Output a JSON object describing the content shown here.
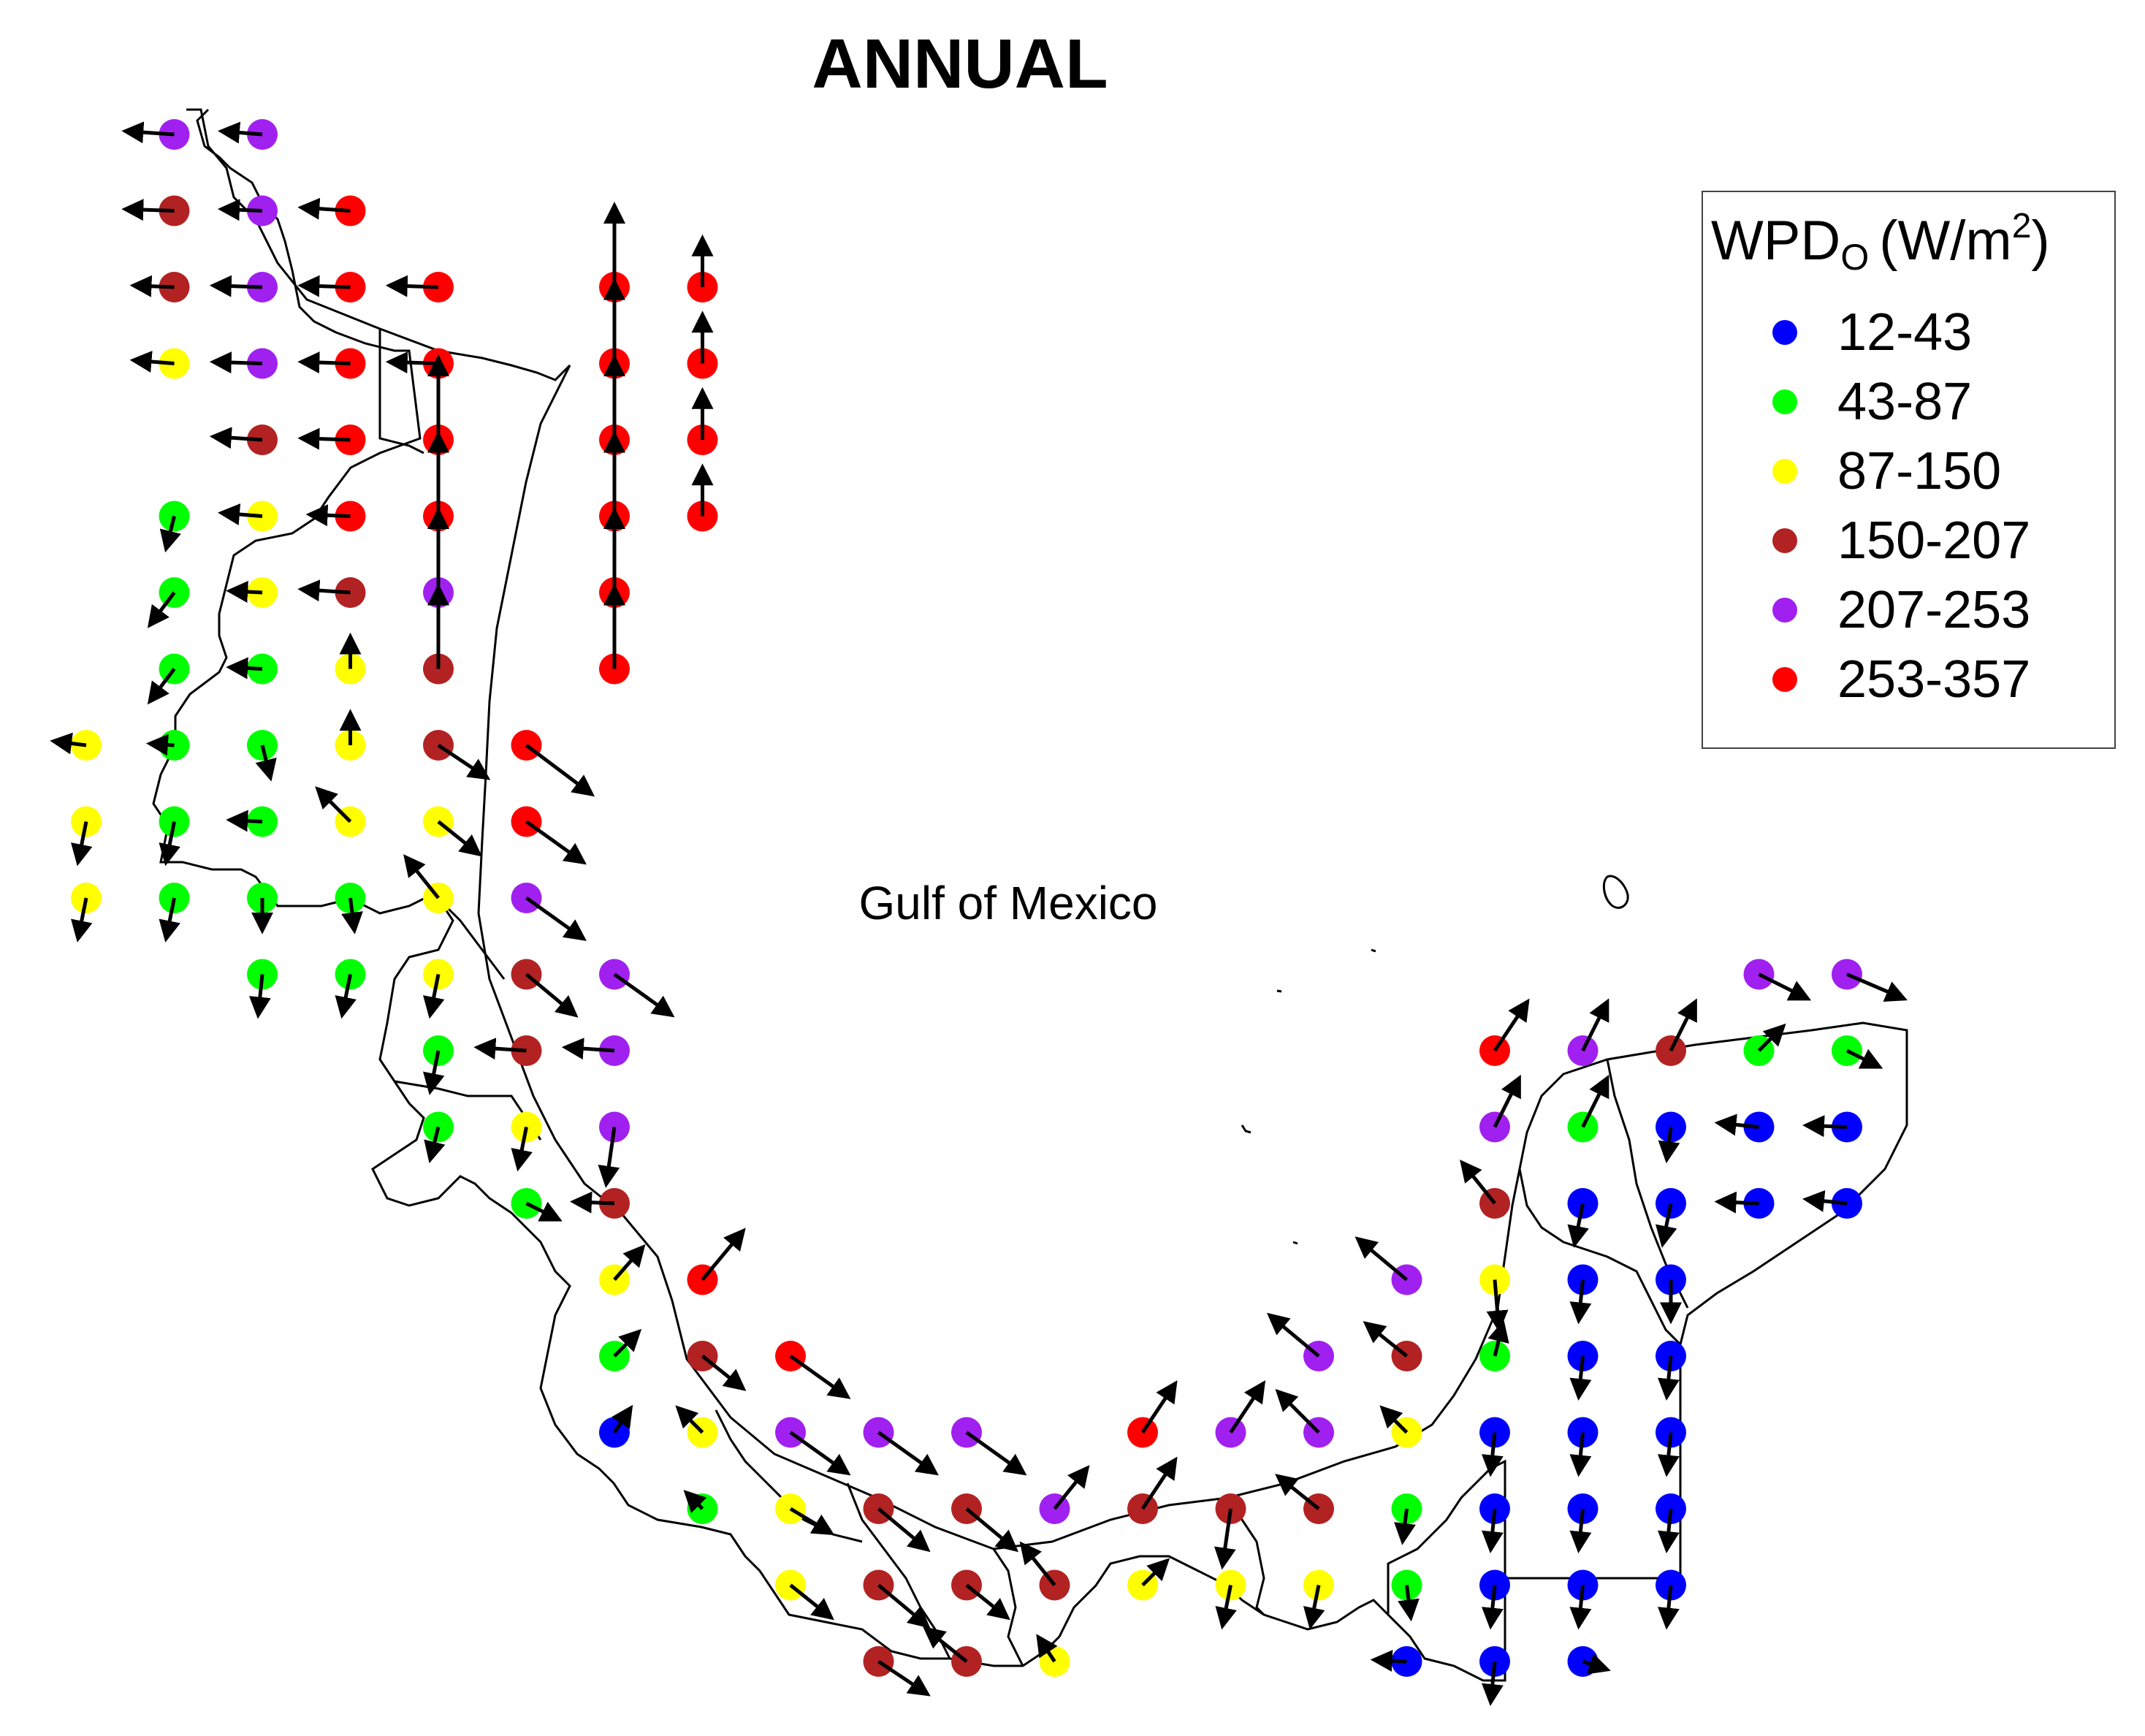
{
  "title": "ANNUAL",
  "sea_label": "Gulf of Mexico",
  "legend": {
    "variable": "WPD",
    "variable_subscript": "O",
    "unit_open": "(W/m",
    "unit_exponent": "2",
    "unit_close": ")",
    "classes": [
      {
        "label": "12-43",
        "color": "#0000ff"
      },
      {
        "label": "43-87",
        "color": "#00ff00"
      },
      {
        "label": "87-150",
        "color": "#ffff00"
      },
      {
        "label": "150-207",
        "color": "#b22222"
      },
      {
        "label": "207-253",
        "color": "#a020f0"
      },
      {
        "label": "253-357",
        "color": "#ff0000"
      }
    ]
  },
  "grid_lon": [
    -99.0,
    -98.5,
    -98.0,
    -97.5,
    -97.0,
    -96.5,
    -96.0,
    -95.5,
    -95.0,
    -94.5,
    -94.0,
    -93.5,
    -93.0,
    -92.5,
    -92.0,
    -91.5,
    -91.0,
    -90.5,
    -90.0,
    -89.5,
    -89.0,
    -88.5,
    -88.0,
    -87.5,
    -87.0
  ],
  "grid_lat": [
    27.0,
    26.5,
    26.0,
    25.5,
    25.0,
    24.5,
    24.0,
    23.5,
    23.0,
    22.5,
    22.0,
    21.5,
    21.0,
    20.5,
    20.0,
    19.5,
    19.0,
    18.5,
    18.0,
    17.5,
    17.0,
    16.5,
    16.0
  ],
  "stations": [
    [
      1,
      0,
      4,
      -0.6,
      0.04
    ],
    [
      2,
      0,
      4,
      -0.5,
      0.04
    ],
    [
      1,
      1,
      3,
      -0.6,
      0.02
    ],
    [
      2,
      1,
      4,
      -0.5,
      0.02
    ],
    [
      3,
      1,
      5,
      -0.6,
      0.04
    ],
    [
      1,
      2,
      3,
      -0.5,
      0.02
    ],
    [
      2,
      2,
      4,
      -0.6,
      0.02
    ],
    [
      3,
      2,
      5,
      -0.6,
      0.02
    ],
    [
      4,
      2,
      5,
      -0.6,
      0.02
    ],
    [
      6,
      2,
      5,
      0,
      1.0
    ],
    [
      7,
      2,
      5,
      0,
      0.6
    ],
    [
      1,
      3,
      2,
      -0.5,
      0.04
    ],
    [
      2,
      3,
      4,
      -0.6,
      0.02
    ],
    [
      3,
      3,
      5,
      -0.6,
      0.02
    ],
    [
      4,
      3,
      5,
      -0.6,
      0.02
    ],
    [
      6,
      3,
      5,
      0,
      1.0
    ],
    [
      7,
      3,
      5,
      0,
      0.6
    ],
    [
      2,
      4,
      3,
      -0.6,
      0.04
    ],
    [
      3,
      4,
      5,
      -0.6,
      0.02
    ],
    [
      4,
      4,
      5,
      0,
      1.0
    ],
    [
      6,
      4,
      5,
      0,
      1.0
    ],
    [
      7,
      4,
      5,
      0,
      0.6
    ],
    [
      1,
      5,
      1,
      -0.1,
      -0.4
    ],
    [
      2,
      5,
      2,
      -0.5,
      0.04
    ],
    [
      3,
      5,
      5,
      -0.5,
      0.02
    ],
    [
      4,
      5,
      5,
      0,
      1.0
    ],
    [
      6,
      5,
      5,
      0,
      1.0
    ],
    [
      7,
      5,
      5,
      0,
      0.6
    ],
    [
      1,
      6,
      1,
      -0.3,
      -0.4
    ],
    [
      2,
      6,
      2,
      -0.4,
      0.02
    ],
    [
      3,
      6,
      3,
      -0.6,
      0.04
    ],
    [
      4,
      6,
      4,
      0,
      1.0
    ],
    [
      6,
      6,
      5,
      0,
      1.0
    ],
    [
      1,
      7,
      1,
      -0.3,
      -0.4
    ],
    [
      2,
      7,
      1,
      -0.4,
      0.02
    ],
    [
      3,
      7,
      2,
      0,
      0.4
    ],
    [
      4,
      7,
      3,
      0,
      1.0
    ],
    [
      6,
      7,
      5,
      0,
      1.0
    ],
    [
      0,
      8,
      2,
      -0.4,
      0.05
    ],
    [
      1,
      8,
      1,
      -0.3,
      0.02
    ],
    [
      2,
      8,
      1,
      0.1,
      -0.4
    ],
    [
      3,
      8,
      2,
      0,
      0.4
    ],
    [
      4,
      8,
      3,
      0.6,
      -0.4
    ],
    [
      5,
      8,
      5,
      0.8,
      -0.6
    ],
    [
      0,
      9,
      2,
      -0.1,
      -0.5
    ],
    [
      1,
      9,
      1,
      -0.1,
      -0.5
    ],
    [
      2,
      9,
      1,
      -0.4,
      0.02
    ],
    [
      3,
      9,
      2,
      -0.4,
      0.4
    ],
    [
      4,
      9,
      2,
      0.5,
      -0.4
    ],
    [
      5,
      9,
      5,
      0.7,
      -0.5
    ],
    [
      0,
      10,
      2,
      -0.1,
      -0.5
    ],
    [
      1,
      10,
      1,
      -0.1,
      -0.5
    ],
    [
      2,
      10,
      1,
      0,
      -0.4
    ],
    [
      3,
      10,
      1,
      0.05,
      -0.4
    ],
    [
      4,
      10,
      2,
      -0.4,
      0.5
    ],
    [
      5,
      10,
      4,
      0.7,
      -0.5
    ],
    [
      2,
      11,
      1,
      -0.05,
      -0.5
    ],
    [
      3,
      11,
      1,
      -0.1,
      -0.5
    ],
    [
      4,
      11,
      2,
      -0.1,
      -0.5
    ],
    [
      5,
      11,
      3,
      0.6,
      -0.5
    ],
    [
      6,
      11,
      4,
      0.7,
      -0.5
    ],
    [
      4,
      12,
      1,
      -0.1,
      -0.5
    ],
    [
      5,
      12,
      3,
      -0.6,
      0.04
    ],
    [
      6,
      12,
      4,
      -0.6,
      0.04
    ],
    [
      4,
      13,
      1,
      -0.1,
      -0.4
    ],
    [
      5,
      13,
      2,
      -0.1,
      -0.5
    ],
    [
      6,
      13,
      4,
      -0.1,
      -0.7
    ],
    [
      5,
      14,
      1,
      0.4,
      -0.2
    ],
    [
      6,
      14,
      3,
      -0.5,
      0.02
    ],
    [
      6,
      15,
      2,
      0.35,
      0.4
    ],
    [
      7,
      15,
      5,
      0.5,
      0.6
    ],
    [
      6,
      16,
      1,
      0.3,
      0.3
    ],
    [
      7,
      16,
      3,
      0.5,
      -0.4
    ],
    [
      8,
      16,
      5,
      0.7,
      -0.5
    ],
    [
      6,
      17,
      0,
      0.2,
      0.3
    ],
    [
      7,
      17,
      2,
      -0.3,
      0.3
    ],
    [
      8,
      17,
      4,
      0.7,
      -0.5
    ],
    [
      9,
      17,
      4,
      0.7,
      -0.5
    ],
    [
      10,
      17,
      4,
      0.7,
      -0.5
    ],
    [
      12,
      17,
      5,
      0.4,
      0.6
    ],
    [
      13,
      17,
      4,
      0.4,
      0.6
    ],
    [
      14,
      17,
      4,
      -0.5,
      0.5
    ],
    [
      15,
      17,
      2,
      -0.3,
      0.3
    ],
    [
      7,
      18,
      1,
      -0.2,
      0.2
    ],
    [
      8,
      18,
      2,
      0.5,
      -0.3
    ],
    [
      9,
      18,
      3,
      0.6,
      -0.5
    ],
    [
      10,
      18,
      3,
      0.6,
      -0.5
    ],
    [
      11,
      18,
      4,
      0.4,
      0.5
    ],
    [
      12,
      18,
      3,
      0.4,
      0.6
    ],
    [
      13,
      18,
      3,
      -0.1,
      -0.7
    ],
    [
      14,
      18,
      3,
      -0.5,
      0.4
    ],
    [
      15,
      18,
      1,
      -0.05,
      -0.4
    ],
    [
      8,
      19,
      2,
      0.5,
      -0.4
    ],
    [
      9,
      19,
      3,
      0.6,
      -0.5
    ],
    [
      10,
      19,
      3,
      0.5,
      -0.4
    ],
    [
      11,
      19,
      3,
      -0.4,
      0.5
    ],
    [
      12,
      19,
      2,
      0.3,
      0.3
    ],
    [
      13,
      19,
      2,
      -0.1,
      -0.5
    ],
    [
      14,
      19,
      2,
      -0.1,
      -0.5
    ],
    [
      15,
      19,
      1,
      0.05,
      -0.4
    ],
    [
      9,
      20,
      3,
      0.6,
      -0.4
    ],
    [
      10,
      20,
      3,
      -0.5,
      0.4
    ],
    [
      11,
      20,
      2,
      -0.2,
      0.3
    ],
    [
      14,
      16,
      4,
      -0.6,
      0.5
    ],
    [
      15,
      16,
      3,
      -0.5,
      0.4
    ],
    [
      16,
      16,
      1,
      0.1,
      0.4
    ],
    [
      15,
      15,
      4,
      -0.6,
      0.5
    ],
    [
      16,
      15,
      2,
      0.05,
      -0.6
    ],
    [
      17,
      15,
      0,
      -0.05,
      -0.5
    ],
    [
      18,
      15,
      0,
      0,
      -0.5
    ],
    [
      16,
      14,
      3,
      -0.4,
      0.5
    ],
    [
      17,
      14,
      0,
      -0.1,
      -0.5
    ],
    [
      18,
      14,
      0,
      -0.1,
      -0.5
    ],
    [
      19,
      14,
      0,
      -0.5,
      0.02
    ],
    [
      20,
      14,
      0,
      -0.5,
      0.05
    ],
    [
      16,
      13,
      4,
      0.3,
      0.6
    ],
    [
      17,
      13,
      1,
      0.3,
      0.6
    ],
    [
      18,
      13,
      0,
      -0.05,
      -0.4
    ],
    [
      19,
      13,
      0,
      -0.5,
      0.05
    ],
    [
      20,
      13,
      0,
      -0.5,
      0.02
    ],
    [
      16,
      12,
      5,
      0.4,
      0.6
    ],
    [
      17,
      12,
      4,
      0.3,
      0.6
    ],
    [
      18,
      12,
      3,
      0.3,
      0.6
    ],
    [
      19,
      12,
      1,
      0.3,
      0.3
    ],
    [
      20,
      12,
      1,
      0.4,
      -0.2
    ],
    [
      19,
      11,
      4,
      0.6,
      -0.3
    ],
    [
      20,
      11,
      4,
      0.7,
      -0.3
    ],
    [
      16,
      16,
      2,
      0,
      0
    ],
    [
      17,
      16,
      0,
      -0.05,
      -0.5
    ],
    [
      18,
      16,
      0,
      -0.05,
      -0.5
    ],
    [
      16,
      17,
      0,
      -0.05,
      -0.5
    ],
    [
      17,
      17,
      0,
      -0.05,
      -0.5
    ],
    [
      18,
      17,
      0,
      -0.05,
      -0.5
    ],
    [
      16,
      18,
      0,
      -0.05,
      -0.5
    ],
    [
      17,
      18,
      0,
      -0.05,
      -0.5
    ],
    [
      18,
      18,
      0,
      -0.05,
      -0.5
    ],
    [
      16,
      19,
      0,
      -0.05,
      -0.5
    ],
    [
      17,
      19,
      0,
      -0.05,
      -0.5
    ],
    [
      18,
      19,
      0,
      -0.05,
      -0.5
    ],
    [
      15,
      20,
      0,
      -0.4,
      0.02
    ],
    [
      16,
      20,
      0,
      -0.05,
      -0.5
    ],
    [
      17,
      20,
      0,
      0.3,
      -0.1
    ]
  ]
}
